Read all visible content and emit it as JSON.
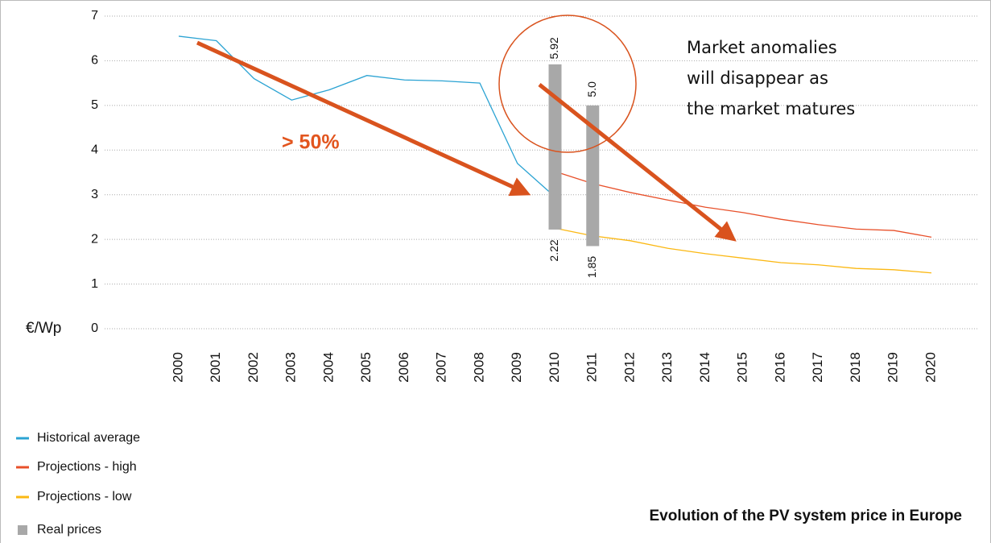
{
  "chart_data": {
    "type": "line",
    "title": "Evolution of the PV system price in Europe",
    "y_label": "€/Wp",
    "annotations": [
      "> 50%",
      [
        "Market anomalies",
        "will disappear as",
        "the market matures"
      ]
    ],
    "categories": [
      "2000",
      "2001",
      "2002",
      "2003",
      "2004",
      "2005",
      "2006",
      "2007",
      "2008",
      "2009",
      "2010",
      "2011",
      "2012",
      "2013",
      "2014",
      "2015",
      "2016",
      "2017",
      "2018",
      "2019",
      "2020"
    ],
    "ylim": [
      0,
      7
    ],
    "yticks": [
      0,
      1,
      2,
      3,
      4,
      5,
      6,
      7
    ],
    "grid": true,
    "series": [
      {
        "name": "Historical average",
        "color": "#2ba3d3",
        "values": [
          6.55,
          6.45,
          5.6,
          5.12,
          5.35,
          5.67,
          5.57,
          5.55,
          5.5,
          3.7,
          2.95,
          null,
          null,
          null,
          null,
          null,
          null,
          null,
          null,
          null,
          null
        ]
      },
      {
        "name": "Projections - high",
        "color": "#e8502a",
        "values": [
          null,
          null,
          null,
          null,
          null,
          null,
          null,
          null,
          null,
          null,
          3.52,
          3.25,
          3.05,
          2.88,
          2.72,
          2.6,
          2.45,
          2.33,
          2.23,
          2.2,
          2.05
        ]
      },
      {
        "name": "Projections - low",
        "color": "#fbb813",
        "values": [
          null,
          null,
          null,
          null,
          null,
          null,
          null,
          null,
          null,
          null,
          2.25,
          2.08,
          1.97,
          1.8,
          1.68,
          1.58,
          1.48,
          1.43,
          1.35,
          1.32,
          1.25
        ]
      },
      {
        "name": "Real prices",
        "color": "#a8a8a8",
        "type": "range",
        "low": [
          null,
          null,
          null,
          null,
          null,
          null,
          null,
          null,
          null,
          null,
          2.22,
          1.85,
          null,
          null,
          null,
          null,
          null,
          null,
          null,
          null,
          null
        ],
        "high": [
          null,
          null,
          null,
          null,
          null,
          null,
          null,
          null,
          null,
          null,
          5.92,
          5.0,
          null,
          null,
          null,
          null,
          null,
          null,
          null,
          null,
          null
        ],
        "high_labels": [
          null,
          null,
          null,
          null,
          null,
          null,
          null,
          null,
          null,
          null,
          "5.92",
          "5.0",
          null,
          null,
          null,
          null,
          null,
          null,
          null,
          null,
          null
        ]
      }
    ]
  }
}
